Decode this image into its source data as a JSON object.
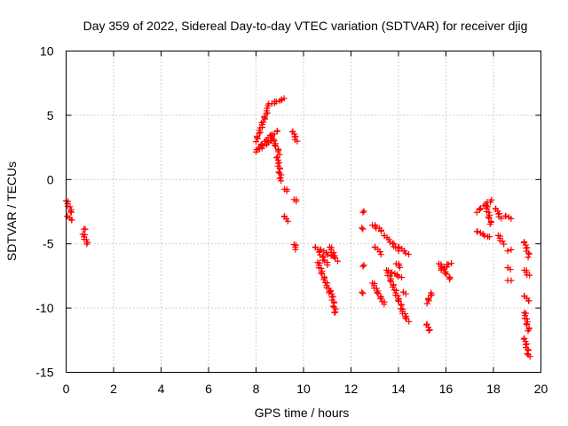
{
  "chart_data": {
    "type": "scatter",
    "title": "Day 359 of 2022, Sidereal Day-to-day VTEC variation (SDTVAR) for receiver djig",
    "xlabel": "GPS time / hours",
    "ylabel": "SDTVAR / TECUs",
    "xlim": [
      0,
      20
    ],
    "ylim": [
      -15,
      10
    ],
    "xticks": [
      0,
      2,
      4,
      6,
      8,
      10,
      12,
      14,
      16,
      18,
      20
    ],
    "yticks": [
      -15,
      -10,
      -5,
      0,
      5,
      10
    ],
    "marker": "+",
    "grid": true,
    "colors": {
      "points": "#ff0000",
      "grid": "#a0a0a0",
      "axis": "#000000"
    },
    "segments": [
      {
        "x0": 0.0,
        "x1": 0.25,
        "y0": -1.6,
        "y1": -2.6
      },
      {
        "x0": 0.05,
        "x1": 0.25,
        "y0": -2.8,
        "y1": -3.2
      },
      {
        "x0": 0.7,
        "x1": 0.9,
        "y0": -4.2,
        "y1": -5.0
      },
      {
        "x0": 0.75,
        "x1": 0.85,
        "y0": -3.8,
        "y1": -3.9
      },
      {
        "x0": 8.0,
        "x1": 8.5,
        "y0": 3.0,
        "y1": 5.5
      },
      {
        "x0": 8.5,
        "x1": 9.2,
        "y0": 5.8,
        "y1": 6.3
      },
      {
        "x0": 8.1,
        "x1": 8.9,
        "y0": 2.5,
        "y1": 3.8
      },
      {
        "x0": 8.0,
        "x1": 8.7,
        "y0": 2.2,
        "y1": 3.1
      },
      {
        "x0": 8.6,
        "x1": 9.0,
        "y0": 3.5,
        "y1": 2.0
      },
      {
        "x0": 8.9,
        "x1": 9.05,
        "y0": 1.8,
        "y1": -0.1
      },
      {
        "x0": 9.2,
        "x1": 9.3,
        "y0": -0.7,
        "y1": -0.9
      },
      {
        "x0": 9.55,
        "x1": 9.7,
        "y0": 3.8,
        "y1": 3.0
      },
      {
        "x0": 9.6,
        "x1": 9.7,
        "y0": -1.5,
        "y1": -1.7
      },
      {
        "x0": 9.2,
        "x1": 9.3,
        "y0": -2.8,
        "y1": -3.2
      },
      {
        "x0": 9.6,
        "x1": 9.7,
        "y0": -5.0,
        "y1": -5.4
      },
      {
        "x0": 10.5,
        "x1": 11.0,
        "y0": -5.2,
        "y1": -6.6
      },
      {
        "x0": 10.6,
        "x1": 11.1,
        "y0": -6.4,
        "y1": -8.8
      },
      {
        "x0": 10.7,
        "x1": 11.2,
        "y0": -5.4,
        "y1": -6.0
      },
      {
        "x0": 11.1,
        "x1": 11.4,
        "y0": -5.2,
        "y1": -6.3
      },
      {
        "x0": 11.15,
        "x1": 11.35,
        "y0": -8.6,
        "y1": -10.4
      },
      {
        "x0": 12.5,
        "x1": 12.5,
        "y0": -2.5,
        "y1": -2.5
      },
      {
        "x0": 12.5,
        "x1": 12.5,
        "y0": -3.8,
        "y1": -3.8
      },
      {
        "x0": 12.5,
        "x1": 12.5,
        "y0": -6.7,
        "y1": -6.7
      },
      {
        "x0": 12.5,
        "x1": 12.5,
        "y0": -8.8,
        "y1": -8.8
      },
      {
        "x0": 12.9,
        "x1": 13.3,
        "y0": -3.5,
        "y1": -4.0
      },
      {
        "x0": 13.0,
        "x1": 13.3,
        "y0": -5.2,
        "y1": -5.8
      },
      {
        "x0": 12.9,
        "x1": 13.4,
        "y0": -8.0,
        "y1": -9.7
      },
      {
        "x0": 13.4,
        "x1": 14.0,
        "y0": -4.3,
        "y1": -5.5
      },
      {
        "x0": 13.5,
        "x1": 14.1,
        "y0": -7.0,
        "y1": -9.8
      },
      {
        "x0": 13.7,
        "x1": 14.1,
        "y0": -7.2,
        "y1": -7.6
      },
      {
        "x0": 13.9,
        "x1": 14.1,
        "y0": -6.5,
        "y1": -6.8
      },
      {
        "x0": 14.0,
        "x1": 14.4,
        "y0": -5.2,
        "y1": -5.8
      },
      {
        "x0": 14.1,
        "x1": 14.4,
        "y0": -10.0,
        "y1": -11.0
      },
      {
        "x0": 14.2,
        "x1": 14.3,
        "y0": -8.7,
        "y1": -8.9
      },
      {
        "x0": 15.2,
        "x1": 15.4,
        "y0": -9.6,
        "y1": -8.8
      },
      {
        "x0": 15.2,
        "x1": 15.3,
        "y0": -11.2,
        "y1": -11.8
      },
      {
        "x0": 15.7,
        "x1": 16.2,
        "y0": -6.5,
        "y1": -7.8
      },
      {
        "x0": 15.8,
        "x1": 16.2,
        "y0": -7.0,
        "y1": -6.5
      },
      {
        "x0": 17.3,
        "x1": 17.9,
        "y0": -2.5,
        "y1": -1.6
      },
      {
        "x0": 17.3,
        "x1": 17.8,
        "y0": -4.0,
        "y1": -4.5
      },
      {
        "x0": 17.7,
        "x1": 17.9,
        "y0": -2.0,
        "y1": -3.5
      },
      {
        "x0": 18.1,
        "x1": 18.3,
        "y0": -2.2,
        "y1": -3.0
      },
      {
        "x0": 18.2,
        "x1": 18.4,
        "y0": -4.3,
        "y1": -5.0
      },
      {
        "x0": 18.5,
        "x1": 18.7,
        "y0": -2.8,
        "y1": -3.0
      },
      {
        "x0": 18.6,
        "x1": 18.7,
        "y0": -5.5,
        "y1": -5.5
      },
      {
        "x0": 18.6,
        "x1": 18.7,
        "y0": -6.8,
        "y1": -7.0
      },
      {
        "x0": 18.6,
        "x1": 18.7,
        "y0": -7.8,
        "y1": -7.9
      },
      {
        "x0": 19.3,
        "x1": 19.5,
        "y0": -4.8,
        "y1": -6.0
      },
      {
        "x0": 19.3,
        "x1": 19.5,
        "y0": -7.0,
        "y1": -7.5
      },
      {
        "x0": 19.3,
        "x1": 19.5,
        "y0": -9.0,
        "y1": -9.5
      },
      {
        "x0": 19.3,
        "x1": 19.5,
        "y0": -10.3,
        "y1": -11.8
      },
      {
        "x0": 19.3,
        "x1": 19.5,
        "y0": -12.3,
        "y1": -13.8
      }
    ]
  }
}
